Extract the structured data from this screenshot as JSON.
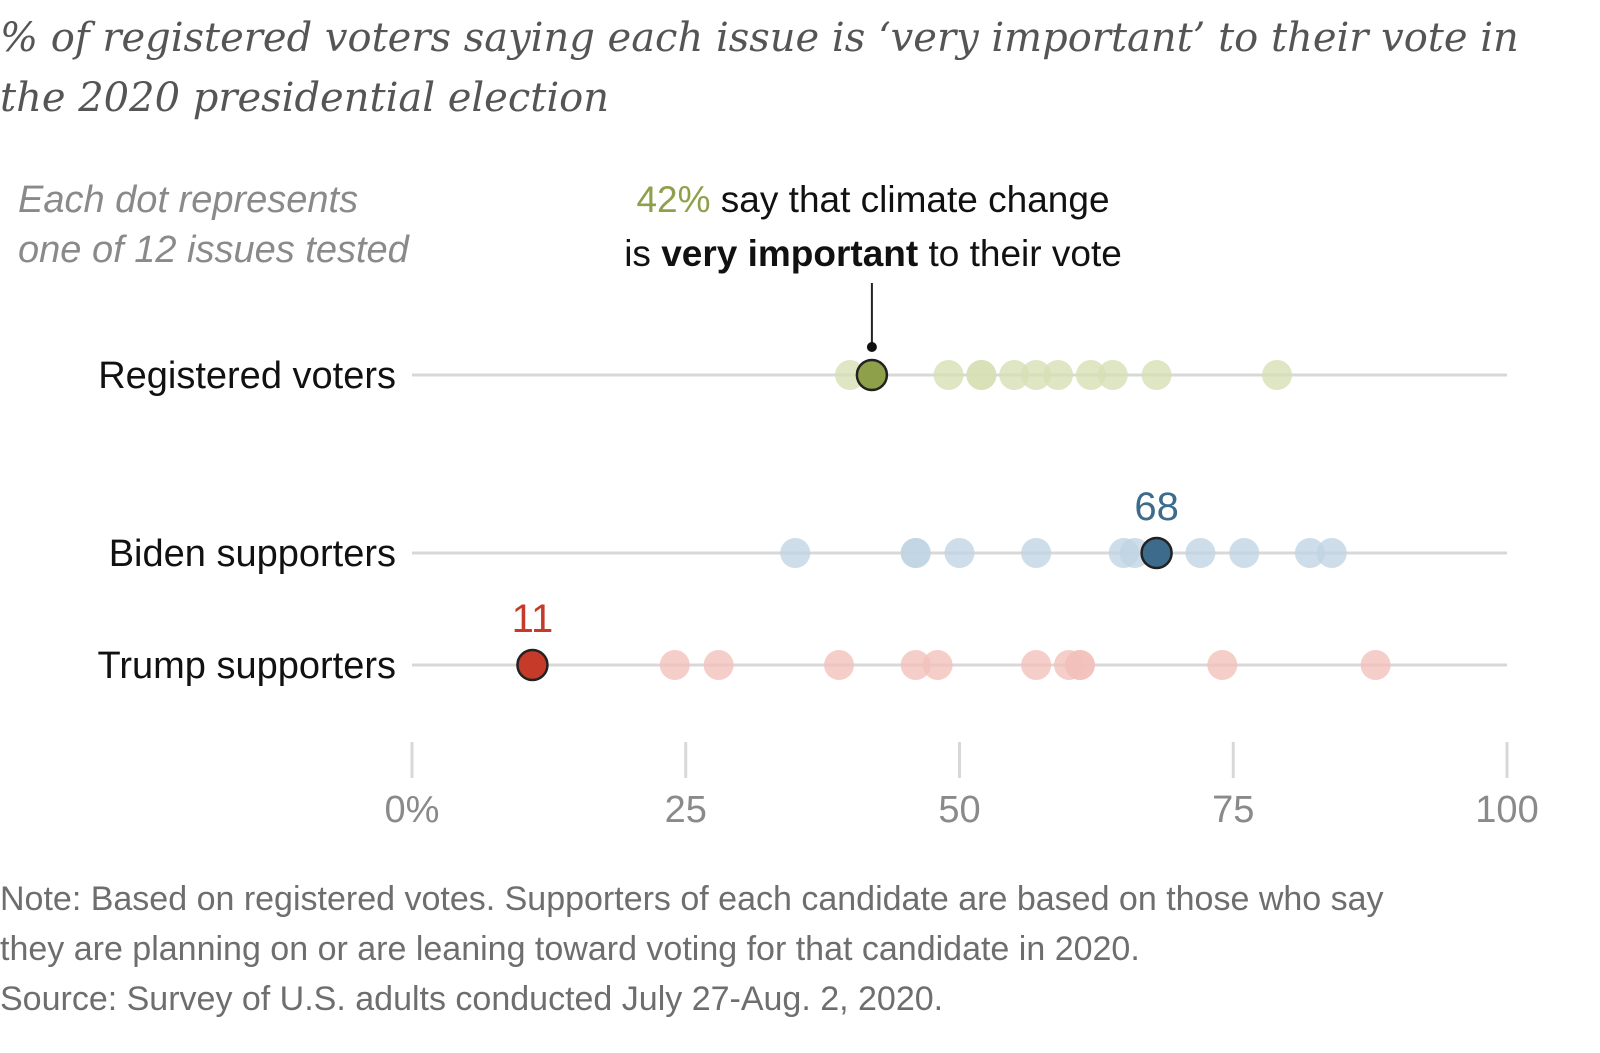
{
  "chart_data": {
    "type": "scatter",
    "title": "% of registered voters saying each issue is ‘very important’ to their vote in the 2020 presidential election",
    "legend_note": [
      "Each dot represents",
      "one of 12 issues tested"
    ],
    "annotation": {
      "value_text": "42%",
      "line1_rest": " say that climate change",
      "line2_pre": "is ",
      "line2_bold": "very important",
      "line2_post": " to their vote"
    },
    "xlim": [
      0,
      100
    ],
    "x_ticks": [
      0,
      25,
      50,
      75,
      100
    ],
    "x_tick_labels": [
      "0%",
      "25",
      "50",
      "75",
      "100"
    ],
    "grid": false,
    "series": [
      {
        "name": "Registered voters",
        "color": "#8fa04a",
        "highlight": 42,
        "highlight_label": "",
        "values": [
          40,
          42,
          49,
          52,
          55,
          57,
          59,
          62,
          64,
          68,
          79,
          52
        ]
      },
      {
        "name": "Biden supporters",
        "color": "#3d6b8c",
        "highlight": 68,
        "highlight_label": "68",
        "values": [
          35,
          46,
          46,
          50,
          57,
          65,
          66,
          68,
          72,
          76,
          82,
          84
        ]
      },
      {
        "name": "Trump supporters",
        "color": "#c63a2a",
        "highlight": 11,
        "highlight_label": "11",
        "values": [
          11,
          24,
          28,
          39,
          46,
          48,
          57,
          60,
          61,
          61,
          74,
          88
        ]
      }
    ]
  },
  "footer": {
    "note_line1": "Note: Based on registered votes. Supporters of each candidate are based on those who say",
    "note_line2": "they are planning on or are leaning toward voting for that candidate in 2020.",
    "source": "Source: Survey of U.S. adults conducted July 27-Aug. 2, 2020."
  },
  "colors": {
    "registered_light": "#d6dfb4",
    "biden_light": "#bfd4e3",
    "trump_light": "#f2c0bb",
    "axis_line": "#d8d8d8"
  }
}
